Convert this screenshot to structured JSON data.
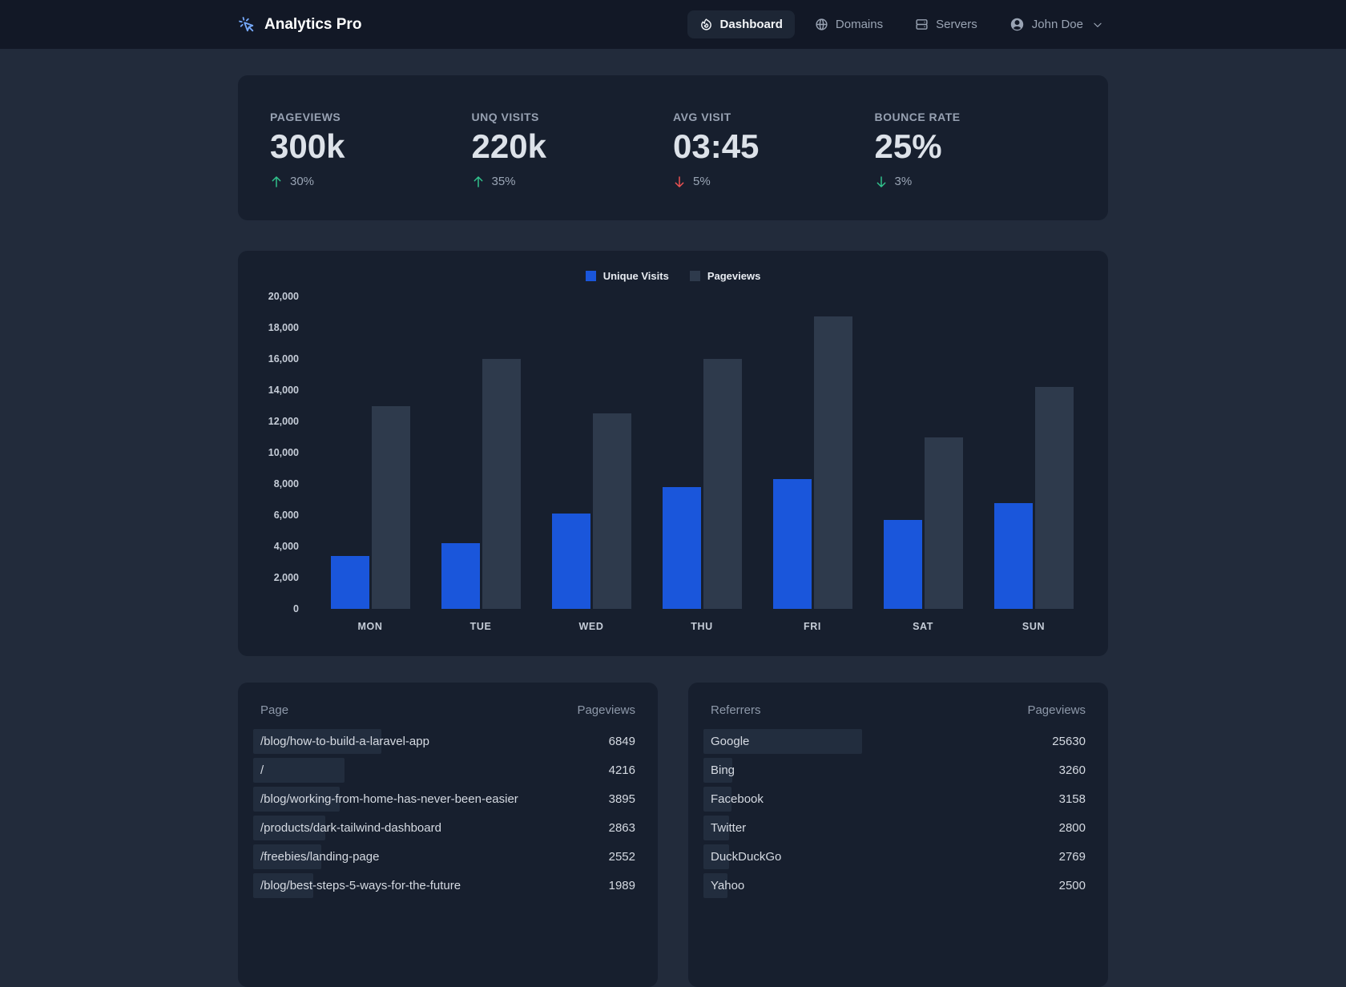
{
  "theme": {
    "navbar_bg": "#121826",
    "page_bg": "#222b3b",
    "card_bg": "#171f2e",
    "accent_blue": "#1a56db",
    "bar_gray": "#2e3a4c",
    "positive_green": "#31c48d",
    "negative_red": "#f05252",
    "row_highlight": "#222d3e"
  },
  "navbar": {
    "logo_text": "Analytics Pro",
    "items": [
      {
        "label": "Dashboard",
        "icon": "flame-icon",
        "active": true
      },
      {
        "label": "Domains",
        "icon": "globe-icon",
        "active": false
      },
      {
        "label": "Servers",
        "icon": "server-icon",
        "active": false
      }
    ],
    "user": {
      "name": "John Doe"
    }
  },
  "stats": [
    {
      "label": "PAGEVIEWS",
      "value": "300k",
      "delta": "30%",
      "direction": "up",
      "trend": "positive"
    },
    {
      "label": "UNQ VISITS",
      "value": "220k",
      "delta": "35%",
      "direction": "up",
      "trend": "positive"
    },
    {
      "label": "AVG VISIT",
      "value": "03:45",
      "delta": "5%",
      "direction": "down",
      "trend": "negative"
    },
    {
      "label": "BOUNCE RATE",
      "value": "25%",
      "delta": "3%",
      "direction": "down",
      "trend": "positive"
    }
  ],
  "chart_data": {
    "type": "bar",
    "categories": [
      "MON",
      "TUE",
      "WED",
      "THU",
      "FRI",
      "SAT",
      "SUN"
    ],
    "series": [
      {
        "name": "Unique Visits",
        "color": "#1a56db",
        "values": [
          3400,
          4200,
          6100,
          7800,
          8300,
          5700,
          6800
        ]
      },
      {
        "name": "Pageviews",
        "color": "#2e3a4c",
        "values": [
          13000,
          16000,
          12500,
          16000,
          18700,
          11000,
          14200
        ]
      }
    ],
    "title": "",
    "xlabel": "",
    "ylabel": "",
    "ylim": [
      0,
      20000
    ],
    "ytick_step": 2000,
    "grid": false,
    "legend_position": "top"
  },
  "tables": {
    "pages": {
      "col1": "Page",
      "col2": "Pageviews",
      "rows": [
        {
          "label": "/blog/how-to-build-a-laravel-app",
          "value": 6849
        },
        {
          "label": "/",
          "value": 4216
        },
        {
          "label": "/blog/working-from-home-has-never-been-easier",
          "value": 3895
        },
        {
          "label": "/products/dark-tailwind-dashboard",
          "value": 2863
        },
        {
          "label": "/freebies/landing-page",
          "value": 2552
        },
        {
          "label": "/blog/best-steps-5-ways-for-the-future",
          "value": 1989
        }
      ]
    },
    "referrers": {
      "col1": "Referrers",
      "col2": "Pageviews",
      "rows": [
        {
          "label": "Google",
          "value": 25630
        },
        {
          "label": "Bing",
          "value": 3260
        },
        {
          "label": "Facebook",
          "value": 3158
        },
        {
          "label": "Twitter",
          "value": 2800
        },
        {
          "label": "DuckDuckGo",
          "value": 2769
        },
        {
          "label": "Yahoo",
          "value": 2500
        }
      ]
    }
  }
}
